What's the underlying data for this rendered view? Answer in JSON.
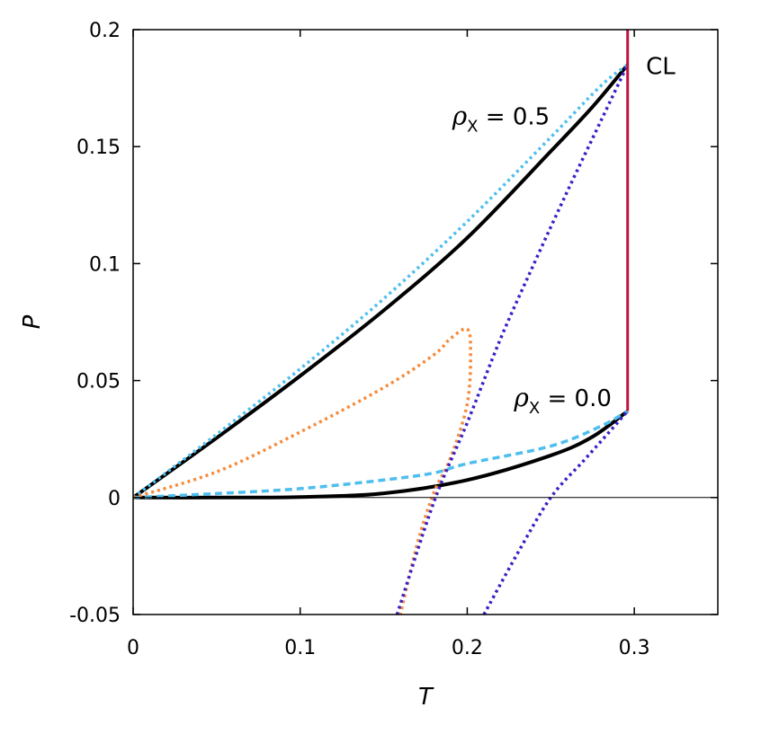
{
  "chart_data": {
    "type": "line",
    "title": "",
    "xlabel": "T",
    "ylabel": "P",
    "xlim": [
      0,
      0.35
    ],
    "ylim": [
      -0.05,
      0.2
    ],
    "x_ticks": [
      "0",
      "0.1",
      "0.2",
      "0.3"
    ],
    "y_ticks": [
      "-0.05",
      "0",
      "0.05",
      "0.1",
      "0.15",
      "0.2"
    ],
    "grid": false,
    "zero_line": true,
    "annotations": [
      {
        "text": "CL",
        "x": 0.307,
        "y": 0.1845
      },
      {
        "symbol": "ρ",
        "sub": "X",
        "text": " = 0.5",
        "x": 0.191,
        "y": 0.163
      },
      {
        "symbol": "ρ",
        "sub": "X",
        "text": " = 0.0",
        "x": 0.228,
        "y": 0.0425
      }
    ],
    "series": [
      {
        "color": "#000000",
        "style": "solid",
        "x": [
          0,
          0.05,
          0.1,
          0.15,
          0.2,
          0.25,
          0.275,
          0.296
        ],
        "y": [
          0,
          0.0255,
          0.052,
          0.08,
          0.111,
          0.148,
          0.167,
          0.185
        ]
      },
      {
        "color": "#4dbeee",
        "style": "dotted",
        "x": [
          0,
          0.05,
          0.1,
          0.15,
          0.2,
          0.25,
          0.28,
          0.296
        ],
        "y": [
          0,
          0.027,
          0.055,
          0.085,
          0.118,
          0.154,
          0.176,
          0.185
        ]
      },
      {
        "color": "#000000",
        "style": "solid",
        "x": [
          0,
          0.05,
          0.1,
          0.15,
          0.2,
          0.25,
          0.275,
          0.296
        ],
        "y": [
          0,
          0,
          0.0002,
          0.0018,
          0.0075,
          0.018,
          0.026,
          0.037
        ]
      },
      {
        "color": "#4dbeee",
        "style": "dashed",
        "x": [
          0,
          0.05,
          0.1,
          0.15,
          0.18,
          0.2,
          0.25,
          0.28,
          0.296
        ],
        "y": [
          0,
          0.0017,
          0.0038,
          0.0075,
          0.0105,
          0.0145,
          0.022,
          0.0305,
          0.037
        ]
      },
      {
        "color": "#f58a3a",
        "style": "dotted",
        "x": [
          0,
          0.05,
          0.1,
          0.15,
          0.18,
          0.19,
          0.2,
          0.202,
          0.2,
          0.19,
          0.18,
          0.17,
          0.16
        ],
        "y": [
          0,
          0.011,
          0.028,
          0.047,
          0.061,
          0.068,
          0.072,
          0.062,
          0.04,
          0.017,
          0.002,
          -0.02,
          -0.05
        ]
      },
      {
        "color": "#3a1fc7",
        "style": "dotted",
        "x": [
          0.158,
          0.18,
          0.2,
          0.22,
          0.24,
          0.26,
          0.28,
          0.296
        ],
        "y": [
          -0.05,
          -0.002,
          0.032,
          0.068,
          0.1,
          0.131,
          0.161,
          0.185
        ]
      },
      {
        "color": "#3a1fc7",
        "style": "dotted",
        "x": [
          0.21,
          0.23,
          0.25,
          0.27,
          0.285,
          0.296
        ],
        "y": [
          -0.05,
          -0.024,
          0.0,
          0.016,
          0.028,
          0.037
        ]
      },
      {
        "color": "#c0143c",
        "style": "solid",
        "x": [
          0.296,
          0.296
        ],
        "y": [
          0.037,
          0.2
        ]
      }
    ]
  }
}
